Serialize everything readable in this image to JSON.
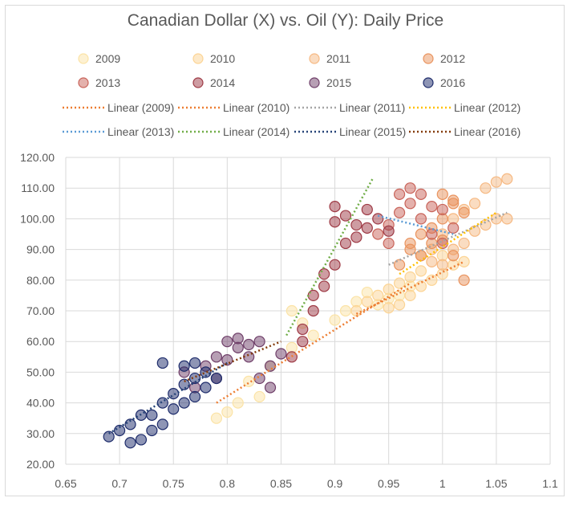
{
  "chart_data": {
    "type": "scatter",
    "title": "Canadian Dollar (X) vs. Oil (Y): Daily Price",
    "xlabel": "",
    "ylabel": "",
    "xlim": [
      0.65,
      1.1
    ],
    "ylim": [
      20,
      120
    ],
    "x_ticks": [
      "0.65",
      "0.7",
      "0.75",
      "0.8",
      "0.85",
      "0.9",
      "0.95",
      "1",
      "1.05",
      "1.1"
    ],
    "y_ticks": [
      "20.00",
      "30.00",
      "40.00",
      "50.00",
      "60.00",
      "70.00",
      "80.00",
      "90.00",
      "100.00",
      "110.00",
      "120.00"
    ],
    "grid": true,
    "legend_position": "top",
    "series": [
      {
        "name": "2009",
        "color": "#fbe3a6",
        "points": [
          [
            0.79,
            35
          ],
          [
            0.8,
            37
          ],
          [
            0.81,
            40
          ],
          [
            0.83,
            42
          ],
          [
            0.82,
            47
          ],
          [
            0.84,
            52
          ],
          [
            0.86,
            58
          ],
          [
            0.88,
            62
          ],
          [
            0.9,
            67
          ],
          [
            0.91,
            70
          ],
          [
            0.92,
            73
          ],
          [
            0.93,
            76
          ],
          [
            0.95,
            74
          ],
          [
            0.94,
            72
          ],
          [
            0.96,
            75
          ],
          [
            0.97,
            78
          ],
          [
            0.87,
            66
          ],
          [
            0.86,
            70
          ]
        ]
      },
      {
        "name": "2010",
        "color": "#fcd494",
        "points": [
          [
            0.92,
            70
          ],
          [
            0.93,
            73
          ],
          [
            0.94,
            75
          ],
          [
            0.95,
            77
          ],
          [
            0.96,
            79
          ],
          [
            0.97,
            81
          ],
          [
            0.98,
            83
          ],
          [
            0.99,
            80
          ],
          [
            1.0,
            82
          ],
          [
            1.01,
            85
          ],
          [
            0.97,
            75
          ],
          [
            0.96,
            72
          ],
          [
            0.95,
            71
          ],
          [
            0.98,
            78
          ],
          [
            1.0,
            88
          ],
          [
            1.02,
            86
          ]
        ]
      },
      {
        "name": "2011",
        "color": "#f6b983",
        "points": [
          [
            0.98,
            88
          ],
          [
            0.99,
            90
          ],
          [
            1.0,
            95
          ],
          [
            1.01,
            100
          ],
          [
            1.02,
            103
          ],
          [
            1.03,
            105
          ],
          [
            1.04,
            110
          ],
          [
            1.05,
            112
          ],
          [
            1.06,
            113
          ],
          [
            1.05,
            100
          ],
          [
            1.04,
            98
          ],
          [
            1.03,
            96
          ],
          [
            1.02,
            92
          ],
          [
            1.01,
            90
          ],
          [
            1.0,
            85
          ],
          [
            0.99,
            86
          ],
          [
            1.06,
            100
          ]
        ]
      },
      {
        "name": "2012",
        "color": "#e9935e",
        "points": [
          [
            0.96,
            85
          ],
          [
            0.97,
            90
          ],
          [
            0.98,
            95
          ],
          [
            0.99,
            92
          ],
          [
            1.0,
            100
          ],
          [
            1.01,
            105
          ],
          [
            1.02,
            102
          ],
          [
            1.0,
            93
          ],
          [
            0.98,
            88
          ],
          [
            0.97,
            92
          ],
          [
            1.01,
            88
          ],
          [
            1.02,
            80
          ],
          [
            0.99,
            97
          ],
          [
            1.0,
            108
          ],
          [
            1.01,
            106
          ]
        ]
      },
      {
        "name": "2013",
        "color": "#c9645a",
        "points": [
          [
            0.94,
            95
          ],
          [
            0.95,
            98
          ],
          [
            0.96,
            102
          ],
          [
            0.97,
            105
          ],
          [
            0.98,
            100
          ],
          [
            0.99,
            95
          ],
          [
            1.0,
            92
          ],
          [
            1.01,
            97
          ],
          [
            0.96,
            108
          ],
          [
            0.97,
            110
          ],
          [
            0.95,
            92
          ],
          [
            0.98,
            108
          ],
          [
            1.0,
            103
          ],
          [
            0.99,
            104
          ]
        ]
      },
      {
        "name": "2014",
        "color": "#9e3a45",
        "points": [
          [
            0.86,
            55
          ],
          [
            0.87,
            60
          ],
          [
            0.88,
            70
          ],
          [
            0.89,
            78
          ],
          [
            0.9,
            85
          ],
          [
            0.91,
            92
          ],
          [
            0.92,
            98
          ],
          [
            0.91,
            101
          ],
          [
            0.93,
            103
          ],
          [
            0.94,
            100
          ],
          [
            0.95,
            96
          ],
          [
            0.92,
            94
          ],
          [
            0.9,
            99
          ],
          [
            0.89,
            82
          ],
          [
            0.88,
            75
          ],
          [
            0.87,
            64
          ],
          [
            0.9,
            104
          ],
          [
            0.93,
            97
          ]
        ]
      },
      {
        "name": "2015",
        "color": "#6f3f69",
        "points": [
          [
            0.77,
            45
          ],
          [
            0.79,
            48
          ],
          [
            0.8,
            54
          ],
          [
            0.81,
            58
          ],
          [
            0.82,
            59
          ],
          [
            0.83,
            60
          ],
          [
            0.8,
            60
          ],
          [
            0.78,
            52
          ],
          [
            0.76,
            50
          ],
          [
            0.84,
            52
          ],
          [
            0.83,
            48
          ],
          [
            0.82,
            55
          ],
          [
            0.81,
            61
          ],
          [
            0.79,
            55
          ],
          [
            0.85,
            56
          ],
          [
            0.84,
            45
          ]
        ]
      },
      {
        "name": "2016",
        "color": "#1e2c6b",
        "points": [
          [
            0.69,
            29
          ],
          [
            0.7,
            31
          ],
          [
            0.71,
            33
          ],
          [
            0.72,
            28
          ],
          [
            0.73,
            31
          ],
          [
            0.73,
            36
          ],
          [
            0.74,
            40
          ],
          [
            0.75,
            43
          ],
          [
            0.76,
            46
          ],
          [
            0.77,
            48
          ],
          [
            0.78,
            45
          ],
          [
            0.74,
            53
          ],
          [
            0.76,
            52
          ],
          [
            0.75,
            38
          ],
          [
            0.77,
            42
          ],
          [
            0.78,
            50
          ],
          [
            0.72,
            36
          ],
          [
            0.74,
            33
          ],
          [
            0.71,
            27
          ],
          [
            0.79,
            48
          ],
          [
            0.76,
            40
          ],
          [
            0.77,
            53
          ]
        ]
      }
    ],
    "trendlines": [
      {
        "name": "Linear (2009)",
        "color": "#ed7d31",
        "x": [
          0.79,
          0.97
        ],
        "y": [
          40,
          79
        ]
      },
      {
        "name": "Linear (2010)",
        "color": "#ed7d31",
        "x": [
          0.92,
          1.02
        ],
        "y": [
          69,
          86
        ]
      },
      {
        "name": "Linear (2011)",
        "color": "#a5a5a5",
        "x": [
          0.95,
          1.06
        ],
        "y": [
          85,
          102
        ]
      },
      {
        "name": "Linear (2012)",
        "color": "#ffc000",
        "x": [
          0.96,
          1.05
        ],
        "y": [
          82,
          102
        ]
      },
      {
        "name": "Linear (2013)",
        "color": "#5b9bd5",
        "x": [
          0.94,
          1.01
        ],
        "y": [
          101,
          95
        ]
      },
      {
        "name": "Linear (2014)",
        "color": "#70ad47",
        "x": [
          0.855,
          0.935
        ],
        "y": [
          62,
          113
        ]
      },
      {
        "name": "Linear (2015)",
        "color": "#264478",
        "x": [
          0.69,
          0.8
        ],
        "y": [
          30,
          53
        ]
      },
      {
        "name": "Linear (2016)",
        "color": "#843c0c",
        "x": [
          0.76,
          0.85
        ],
        "y": [
          47,
          60
        ]
      }
    ]
  }
}
